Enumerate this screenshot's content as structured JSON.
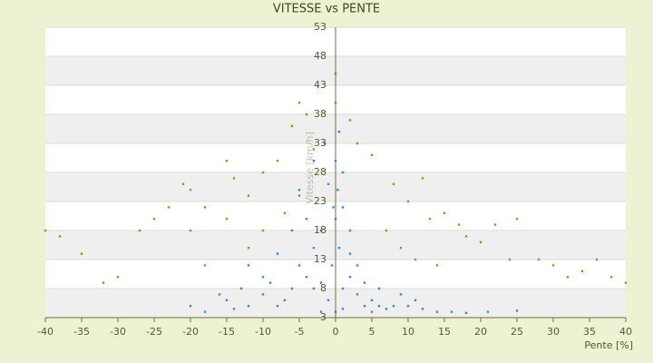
{
  "chart_data": {
    "type": "scatter",
    "title": "VITESSE vs PENTE",
    "x_label": "Pente [%]",
    "y_label": "Vitesse [km/h]",
    "xlim": [
      -40,
      40
    ],
    "ylim": [
      3,
      53
    ],
    "xticks": [
      -40,
      -35,
      -30,
      -25,
      -20,
      -15,
      -10,
      -5,
      0,
      5,
      10,
      15,
      20,
      25,
      30,
      35,
      40
    ],
    "yticks": [
      3,
      8,
      13,
      18,
      23,
      28,
      33,
      38,
      43,
      48,
      53
    ],
    "grid": true,
    "series": [
      {
        "color": "#3a86d4",
        "x": [
          0,
          0.5,
          -0.5,
          1,
          -1,
          0,
          0.3,
          -0.3,
          2,
          -2,
          3,
          -3,
          4,
          5,
          6,
          7,
          8,
          10,
          12,
          14,
          16,
          18,
          21,
          -4,
          -5,
          -6,
          -7,
          -8,
          -10,
          -12,
          -14,
          -15,
          -18,
          -20,
          -3,
          -2,
          -1,
          1,
          2,
          3,
          -4,
          -6,
          -8,
          -10,
          -12,
          -5,
          -3,
          1,
          4,
          6,
          9,
          11,
          0.5,
          -1.5,
          2,
          -9,
          -16,
          0,
          1,
          -2,
          5,
          25,
          -13
        ],
        "values": [
          20,
          15,
          12,
          8,
          6,
          30,
          25,
          22,
          10,
          9,
          7,
          8,
          5,
          6,
          5,
          4.5,
          5,
          5,
          4.5,
          4,
          4,
          3.8,
          4,
          10,
          12,
          8,
          6,
          5,
          7,
          5,
          4.5,
          6,
          4,
          5,
          15,
          18,
          26,
          22,
          14,
          12,
          20,
          18,
          14,
          10,
          12,
          25,
          30,
          28,
          9,
          8,
          7,
          6,
          35,
          33,
          18,
          9,
          7,
          4,
          4.5,
          4,
          4,
          4.2,
          8
        ]
      },
      {
        "color": "#8a9a1e",
        "x": [
          -40,
          -38,
          -35,
          -32,
          -30,
          -27,
          -25,
          -23,
          -21,
          -20,
          -20,
          -18,
          -15,
          -14,
          -15,
          -12,
          -10,
          -8,
          -6,
          -5,
          -4,
          -3,
          0,
          0,
          2,
          3,
          5,
          8,
          10,
          12,
          13,
          15,
          17,
          18,
          20,
          22,
          25,
          24,
          28,
          30,
          32,
          34,
          36,
          38,
          40,
          -10,
          -7,
          -5,
          7,
          9,
          11,
          14,
          -18,
          -12
        ],
        "values": [
          18,
          17,
          14,
          9,
          10,
          18,
          20,
          22,
          26,
          25,
          18,
          22,
          30,
          27,
          20,
          24,
          28,
          30,
          36,
          40,
          38,
          32,
          45,
          40,
          37,
          33,
          31,
          26,
          23,
          27,
          20,
          21,
          19,
          17,
          16,
          19,
          20,
          13,
          13,
          12,
          10,
          11,
          13,
          10,
          9,
          18,
          21,
          24,
          18,
          15,
          13,
          12,
          12,
          15
        ]
      }
    ]
  }
}
